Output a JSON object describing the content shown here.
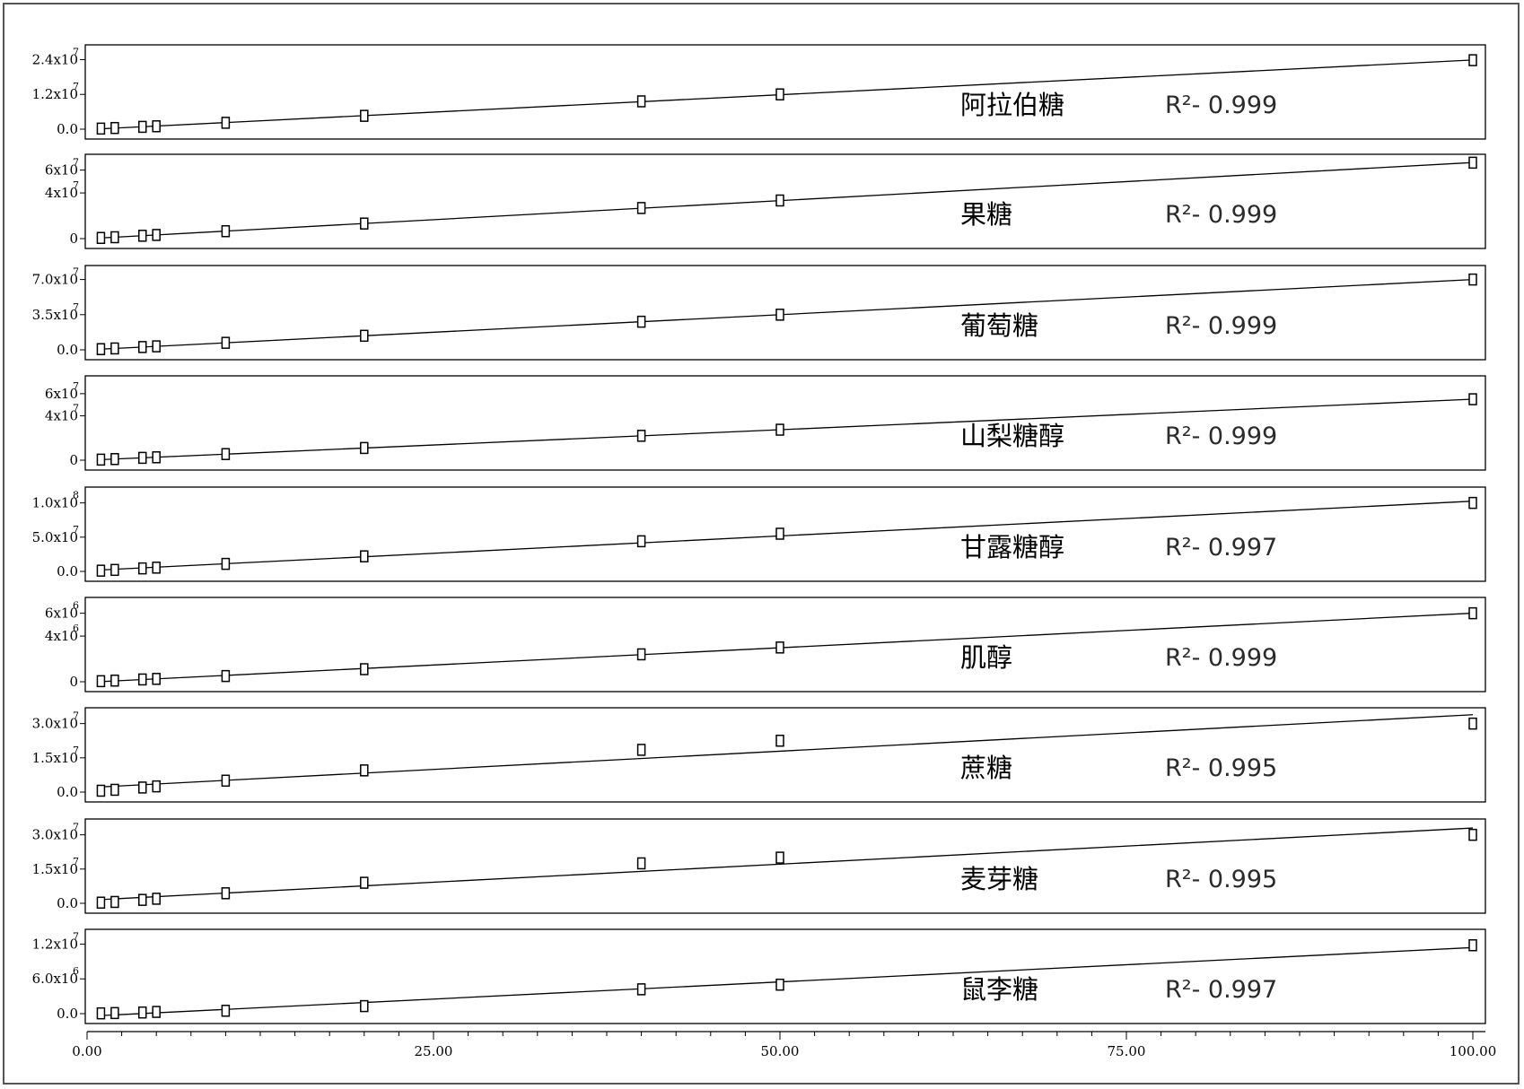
{
  "chart_data": {
    "type": "scatter",
    "x_axis": {
      "range": [
        0,
        100
      ],
      "ticks": [
        {
          "value": 0,
          "label": "0.00"
        },
        {
          "value": 25,
          "label": "25.00"
        },
        {
          "value": 50,
          "label": "50.00"
        },
        {
          "value": 75,
          "label": "75.00"
        },
        {
          "value": 100,
          "label": "100.00"
        }
      ]
    },
    "x": [
      1,
      2,
      4,
      5,
      10,
      20,
      40,
      50,
      100
    ],
    "panels": [
      {
        "label": "阿拉伯糖",
        "r2_label": "R²- 0.999",
        "ylim": [
          0,
          26000000.0
        ],
        "y_ticks": [
          {
            "value": 0,
            "label": "0.0",
            "exp": ""
          },
          {
            "value": 12000000.0,
            "label": "1.2x10",
            "exp": "7"
          },
          {
            "value": 24000000.0,
            "label": "2.4x10",
            "exp": "7"
          }
        ],
        "y": [
          200000.0,
          400000.0,
          800000.0,
          1000000.0,
          2200000.0,
          4600000.0,
          9600000.0,
          12000000.0,
          23800000.0
        ]
      },
      {
        "label": "果糖",
        "r2_label": "R²- 0.999",
        "ylim": [
          0,
          66000000.0
        ],
        "y_ticks": [
          {
            "value": 0,
            "label": "0",
            "exp": ""
          },
          {
            "value": 40000000.0,
            "label": "4x10",
            "exp": "7"
          },
          {
            "value": 60000000.0,
            "label": "6x10",
            "exp": "7"
          }
        ],
        "y": [
          600000.0,
          1200000.0,
          2500000.0,
          3200000.0,
          6500000.0,
          13200000.0,
          26800000.0,
          33400000.0,
          66500000.0
        ]
      },
      {
        "label": "葡萄糖",
        "r2_label": "R²- 0.999",
        "ylim": [
          0,
          75000000.0
        ],
        "y_ticks": [
          {
            "value": 0,
            "label": "0.0",
            "exp": ""
          },
          {
            "value": 35000000.0,
            "label": "3.5x10",
            "exp": "7"
          },
          {
            "value": 70000000.0,
            "label": "7.0x10",
            "exp": "7"
          }
        ],
        "y": [
          700000.0,
          1400000.0,
          2800000.0,
          3500000.0,
          7000000.0,
          14000000.0,
          28000000.0,
          35000000.0,
          70000000.0
        ]
      },
      {
        "label": "山梨糖醇",
        "r2_label": "R²- 0.999",
        "ylim": [
          0,
          68000000.0
        ],
        "y_ticks": [
          {
            "value": 0,
            "label": "0",
            "exp": ""
          },
          {
            "value": 40000000.0,
            "label": "4x10",
            "exp": "7"
          },
          {
            "value": 60000000.0,
            "label": "6x10",
            "exp": "7"
          }
        ],
        "y": [
          500000.0,
          1000000.0,
          2100000.0,
          2600000.0,
          5500000.0,
          11000000.0,
          22000000.0,
          27500000.0,
          55000000.0
        ]
      },
      {
        "label": "甘露糖醇",
        "r2_label": "R²- 0.997",
        "ylim": [
          0,
          110000000.0
        ],
        "y_ticks": [
          {
            "value": 0,
            "label": "0.0",
            "exp": ""
          },
          {
            "value": 50000000.0,
            "label": "5.0x10",
            "exp": "7"
          },
          {
            "value": 100000000.0,
            "label": "1.0x10",
            "exp": "8"
          }
        ],
        "y": [
          1100000.0,
          2200000.0,
          4400000.0,
          5500000.0,
          11000000.0,
          22000000.0,
          44000000.0,
          55000000.0,
          100000000.0
        ]
      },
      {
        "label": "肌醇",
        "r2_label": "R²- 0.999",
        "ylim": [
          0,
          6600000.0
        ],
        "y_ticks": [
          {
            "value": 0,
            "label": "0",
            "exp": ""
          },
          {
            "value": 4000000.0,
            "label": "4x10",
            "exp": "6"
          },
          {
            "value": 6000000.0,
            "label": "6x10",
            "exp": "6"
          }
        ],
        "y": [
          50000.0,
          100000.0,
          200000.0,
          250000.0,
          500000.0,
          1100000.0,
          2400000.0,
          3000000.0,
          6000000.0
        ]
      },
      {
        "label": "蔗糖",
        "r2_label": "R²- 0.995",
        "ylim": [
          0,
          33000000.0
        ],
        "y_ticks": [
          {
            "value": 0,
            "label": "0.0",
            "exp": ""
          },
          {
            "value": 15000000.0,
            "label": "1.5x10",
            "exp": "7"
          },
          {
            "value": 30000000.0,
            "label": "3.0x10",
            "exp": "7"
          }
        ],
        "y": [
          600000.0,
          1000000.0,
          2000000.0,
          2500000.0,
          5000000.0,
          9500000.0,
          18500000.0,
          22500000.0,
          30000000.0
        ]
      },
      {
        "label": "麦芽糖",
        "r2_label": "R²- 0.995",
        "ylim": [
          0,
          33000000.0
        ],
        "y_ticks": [
          {
            "value": 0,
            "label": "0.0",
            "exp": ""
          },
          {
            "value": 15000000.0,
            "label": "1.5x10",
            "exp": "7"
          },
          {
            "value": 30000000.0,
            "label": "3.0x10",
            "exp": "7"
          }
        ],
        "y": [
          300000.0,
          600000.0,
          1500000.0,
          2000000.0,
          4400000.0,
          9000000.0,
          17500000.0,
          20000000.0,
          30000000.0
        ]
      },
      {
        "label": "鼠李糖",
        "r2_label": "R²- 0.997",
        "ylim": [
          0,
          13000000.0
        ],
        "y_ticks": [
          {
            "value": 0,
            "label": "0.0",
            "exp": ""
          },
          {
            "value": 6000000.0,
            "label": "6.0x10",
            "exp": "6"
          },
          {
            "value": 12000000.0,
            "label": "1.2x10",
            "exp": "7"
          }
        ],
        "y": [
          50000.0,
          100000.0,
          200000.0,
          300000.0,
          500000.0,
          1300000.0,
          4200000.0,
          5000000.0,
          11800000.0
        ]
      }
    ]
  }
}
